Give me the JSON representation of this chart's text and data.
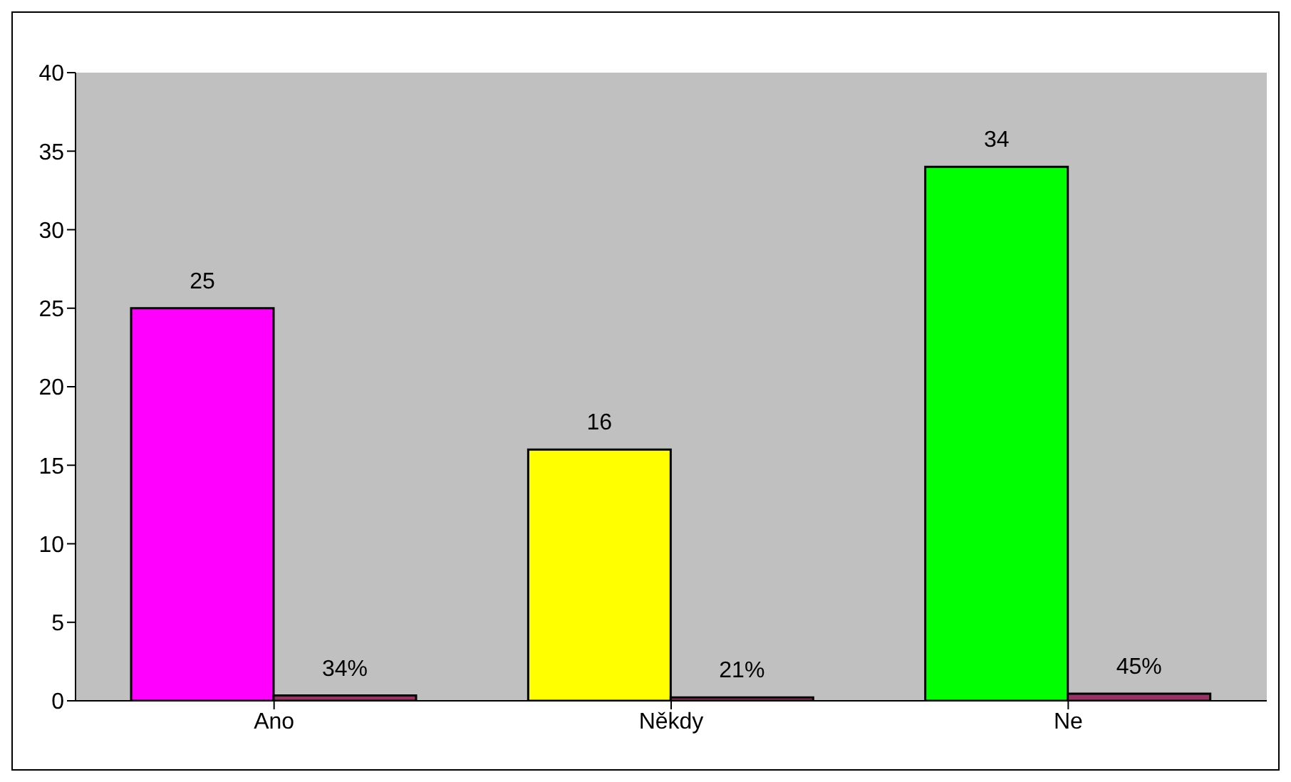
{
  "chart_data": {
    "type": "bar",
    "categories": [
      "Ano",
      "Někdy",
      "Ne"
    ],
    "series": [
      {
        "color": "#ff00ff",
        "colors": [
          "#ff00ff",
          "#ffff00",
          "#00ff00"
        ],
        "values": [
          25,
          16,
          34
        ],
        "value_labels": [
          "25",
          "16",
          "34"
        ]
      },
      {
        "color": "#993366",
        "values": [
          0.34,
          0.21,
          0.45
        ],
        "value_labels": [
          "34%",
          "21%",
          "45%"
        ]
      }
    ],
    "ylim": [
      0,
      40
    ],
    "yticks": [
      0,
      5,
      10,
      15,
      20,
      25,
      30,
      35,
      40
    ]
  }
}
